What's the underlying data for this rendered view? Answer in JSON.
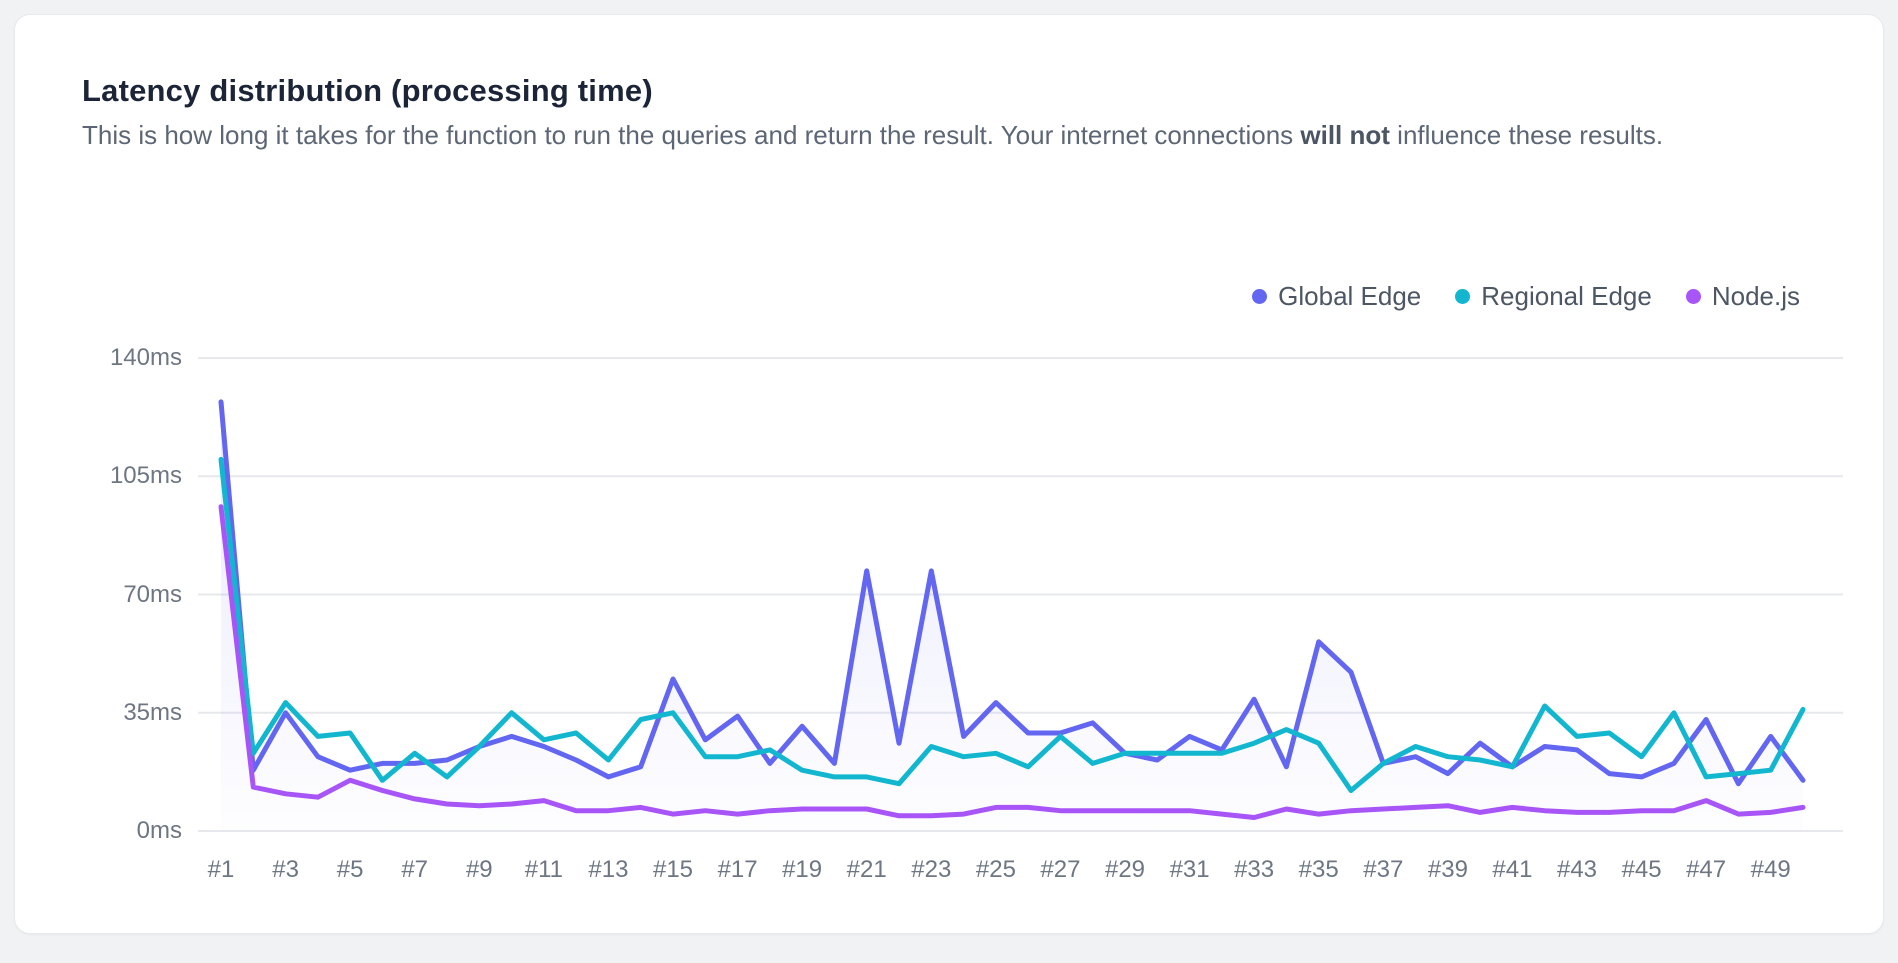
{
  "card": {
    "title": "Latency distribution (processing time)",
    "subtitle_prefix": "This is how long it takes for the function to run the queries and return the result. Your internet connections ",
    "subtitle_bold": "will not",
    "subtitle_suffix": " influence these results."
  },
  "chart_data": {
    "type": "line",
    "title": "Latency distribution (processing time)",
    "unit": "ms",
    "grid": "horizontal",
    "legend_position": "top-right",
    "ylim": [
      0,
      140
    ],
    "y_tick_values": [
      140,
      105,
      70,
      35,
      0
    ],
    "y_tick_labels": [
      "140ms",
      "105ms",
      "70ms",
      "35ms",
      "0ms"
    ],
    "x": [
      1,
      2,
      3,
      4,
      5,
      6,
      7,
      8,
      9,
      10,
      11,
      12,
      13,
      14,
      15,
      16,
      17,
      18,
      19,
      20,
      21,
      22,
      23,
      24,
      25,
      26,
      27,
      28,
      29,
      30,
      31,
      32,
      33,
      34,
      35,
      36,
      37,
      38,
      39,
      40,
      41,
      42,
      43,
      44,
      45,
      46,
      47,
      48,
      49,
      50
    ],
    "x_tick_labels": [
      "#1",
      "#3",
      "#5",
      "#7",
      "#9",
      "#11",
      "#13",
      "#15",
      "#17",
      "#19",
      "#21",
      "#23",
      "#25",
      "#27",
      "#29",
      "#31",
      "#33",
      "#35",
      "#37",
      "#39",
      "#41",
      "#43",
      "#45",
      "#47",
      "#49"
    ],
    "series": [
      {
        "name": "Global Edge",
        "color": "#6366f1",
        "area_fill": true,
        "values": [
          127,
          18,
          35,
          22,
          18,
          20,
          20,
          21,
          25,
          28,
          25,
          21,
          16,
          19,
          45,
          27,
          34,
          20,
          31,
          20,
          77,
          26,
          77,
          28,
          38,
          29,
          29,
          32,
          23,
          21,
          28,
          24,
          39,
          19,
          56,
          47,
          20,
          22,
          17,
          26,
          19,
          25,
          24,
          17,
          16,
          20,
          33,
          14,
          28,
          15
        ]
      },
      {
        "name": "Regional Edge",
        "color": "#12b7cf",
        "area_fill": false,
        "values": [
          110,
          23,
          38,
          28,
          29,
          15,
          23,
          16,
          25,
          35,
          27,
          29,
          21,
          33,
          35,
          22,
          22,
          24,
          18,
          16,
          16,
          14,
          25,
          22,
          23,
          19,
          28,
          20,
          23,
          23,
          23,
          23,
          26,
          30,
          26,
          12,
          20,
          25,
          22,
          21,
          19,
          37,
          28,
          29,
          22,
          35,
          16,
          17,
          18,
          36
        ]
      },
      {
        "name": "Node.js",
        "color": "#a855f7",
        "area_fill": false,
        "values": [
          96,
          13,
          11,
          10,
          15,
          12,
          9.5,
          8,
          7.5,
          8,
          9,
          6,
          6,
          7,
          5,
          6,
          5,
          6,
          6.5,
          6.5,
          6.5,
          4.5,
          4.5,
          5,
          7,
          7,
          6,
          6,
          6,
          6,
          6,
          5,
          4,
          6.5,
          5,
          6,
          6.5,
          7,
          7.5,
          5.5,
          7,
          6,
          5.5,
          5.5,
          6,
          6,
          9,
          5,
          5.5,
          7
        ]
      }
    ]
  }
}
